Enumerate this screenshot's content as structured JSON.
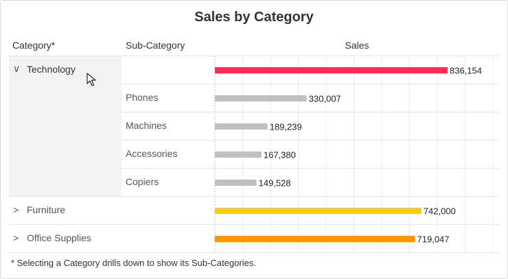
{
  "title": "Sales by Category",
  "headers": {
    "category": "Category*",
    "sub_category": "Sub-Category",
    "sales": "Sales"
  },
  "footnote": "* Selecting a Category drills down to show its Sub-Categories.",
  "colors": {
    "technology": "#ff2d55",
    "furniture": "#ffcc00",
    "office_supplies": "#ff9500",
    "subcategory": "#c0c0c0",
    "grid": "#ebebeb",
    "drill_background": "#f3f3f3"
  },
  "rows": [
    {
      "category": "Technology",
      "sub_category": "",
      "expanded": true,
      "icon": "chevron-down-icon"
    },
    {
      "category": "",
      "sub_category": "Phones"
    },
    {
      "category": "",
      "sub_category": "Machines"
    },
    {
      "category": "",
      "sub_category": "Accessories"
    },
    {
      "category": "",
      "sub_category": "Copiers"
    },
    {
      "category": "Furniture",
      "sub_category": "",
      "expanded": false,
      "icon": "chevron-right-icon"
    },
    {
      "category": "Office Supplies",
      "sub_category": "",
      "expanded": false,
      "icon": "chevron-right-icon"
    }
  ],
  "chart_data": {
    "type": "bar",
    "orientation": "horizontal",
    "title": "Sales by Category",
    "xlabel": "Sales",
    "categories": [
      "Technology",
      "Phones",
      "Machines",
      "Accessories",
      "Copiers",
      "Furniture",
      "Office Supplies"
    ],
    "values": [
      836154,
      330007,
      189239,
      167380,
      149528,
      742000,
      719047
    ],
    "labels": [
      "836,154",
      "330,007",
      "189,239",
      "167,380",
      "149,528",
      "742,000",
      "719,047"
    ],
    "bar_colors": [
      "#ff2d55",
      "#c0c0c0",
      "#c0c0c0",
      "#c0c0c0",
      "#c0c0c0",
      "#ffcc00",
      "#ff9500"
    ],
    "xlim": [
      0,
      1000000
    ],
    "grid": true
  }
}
